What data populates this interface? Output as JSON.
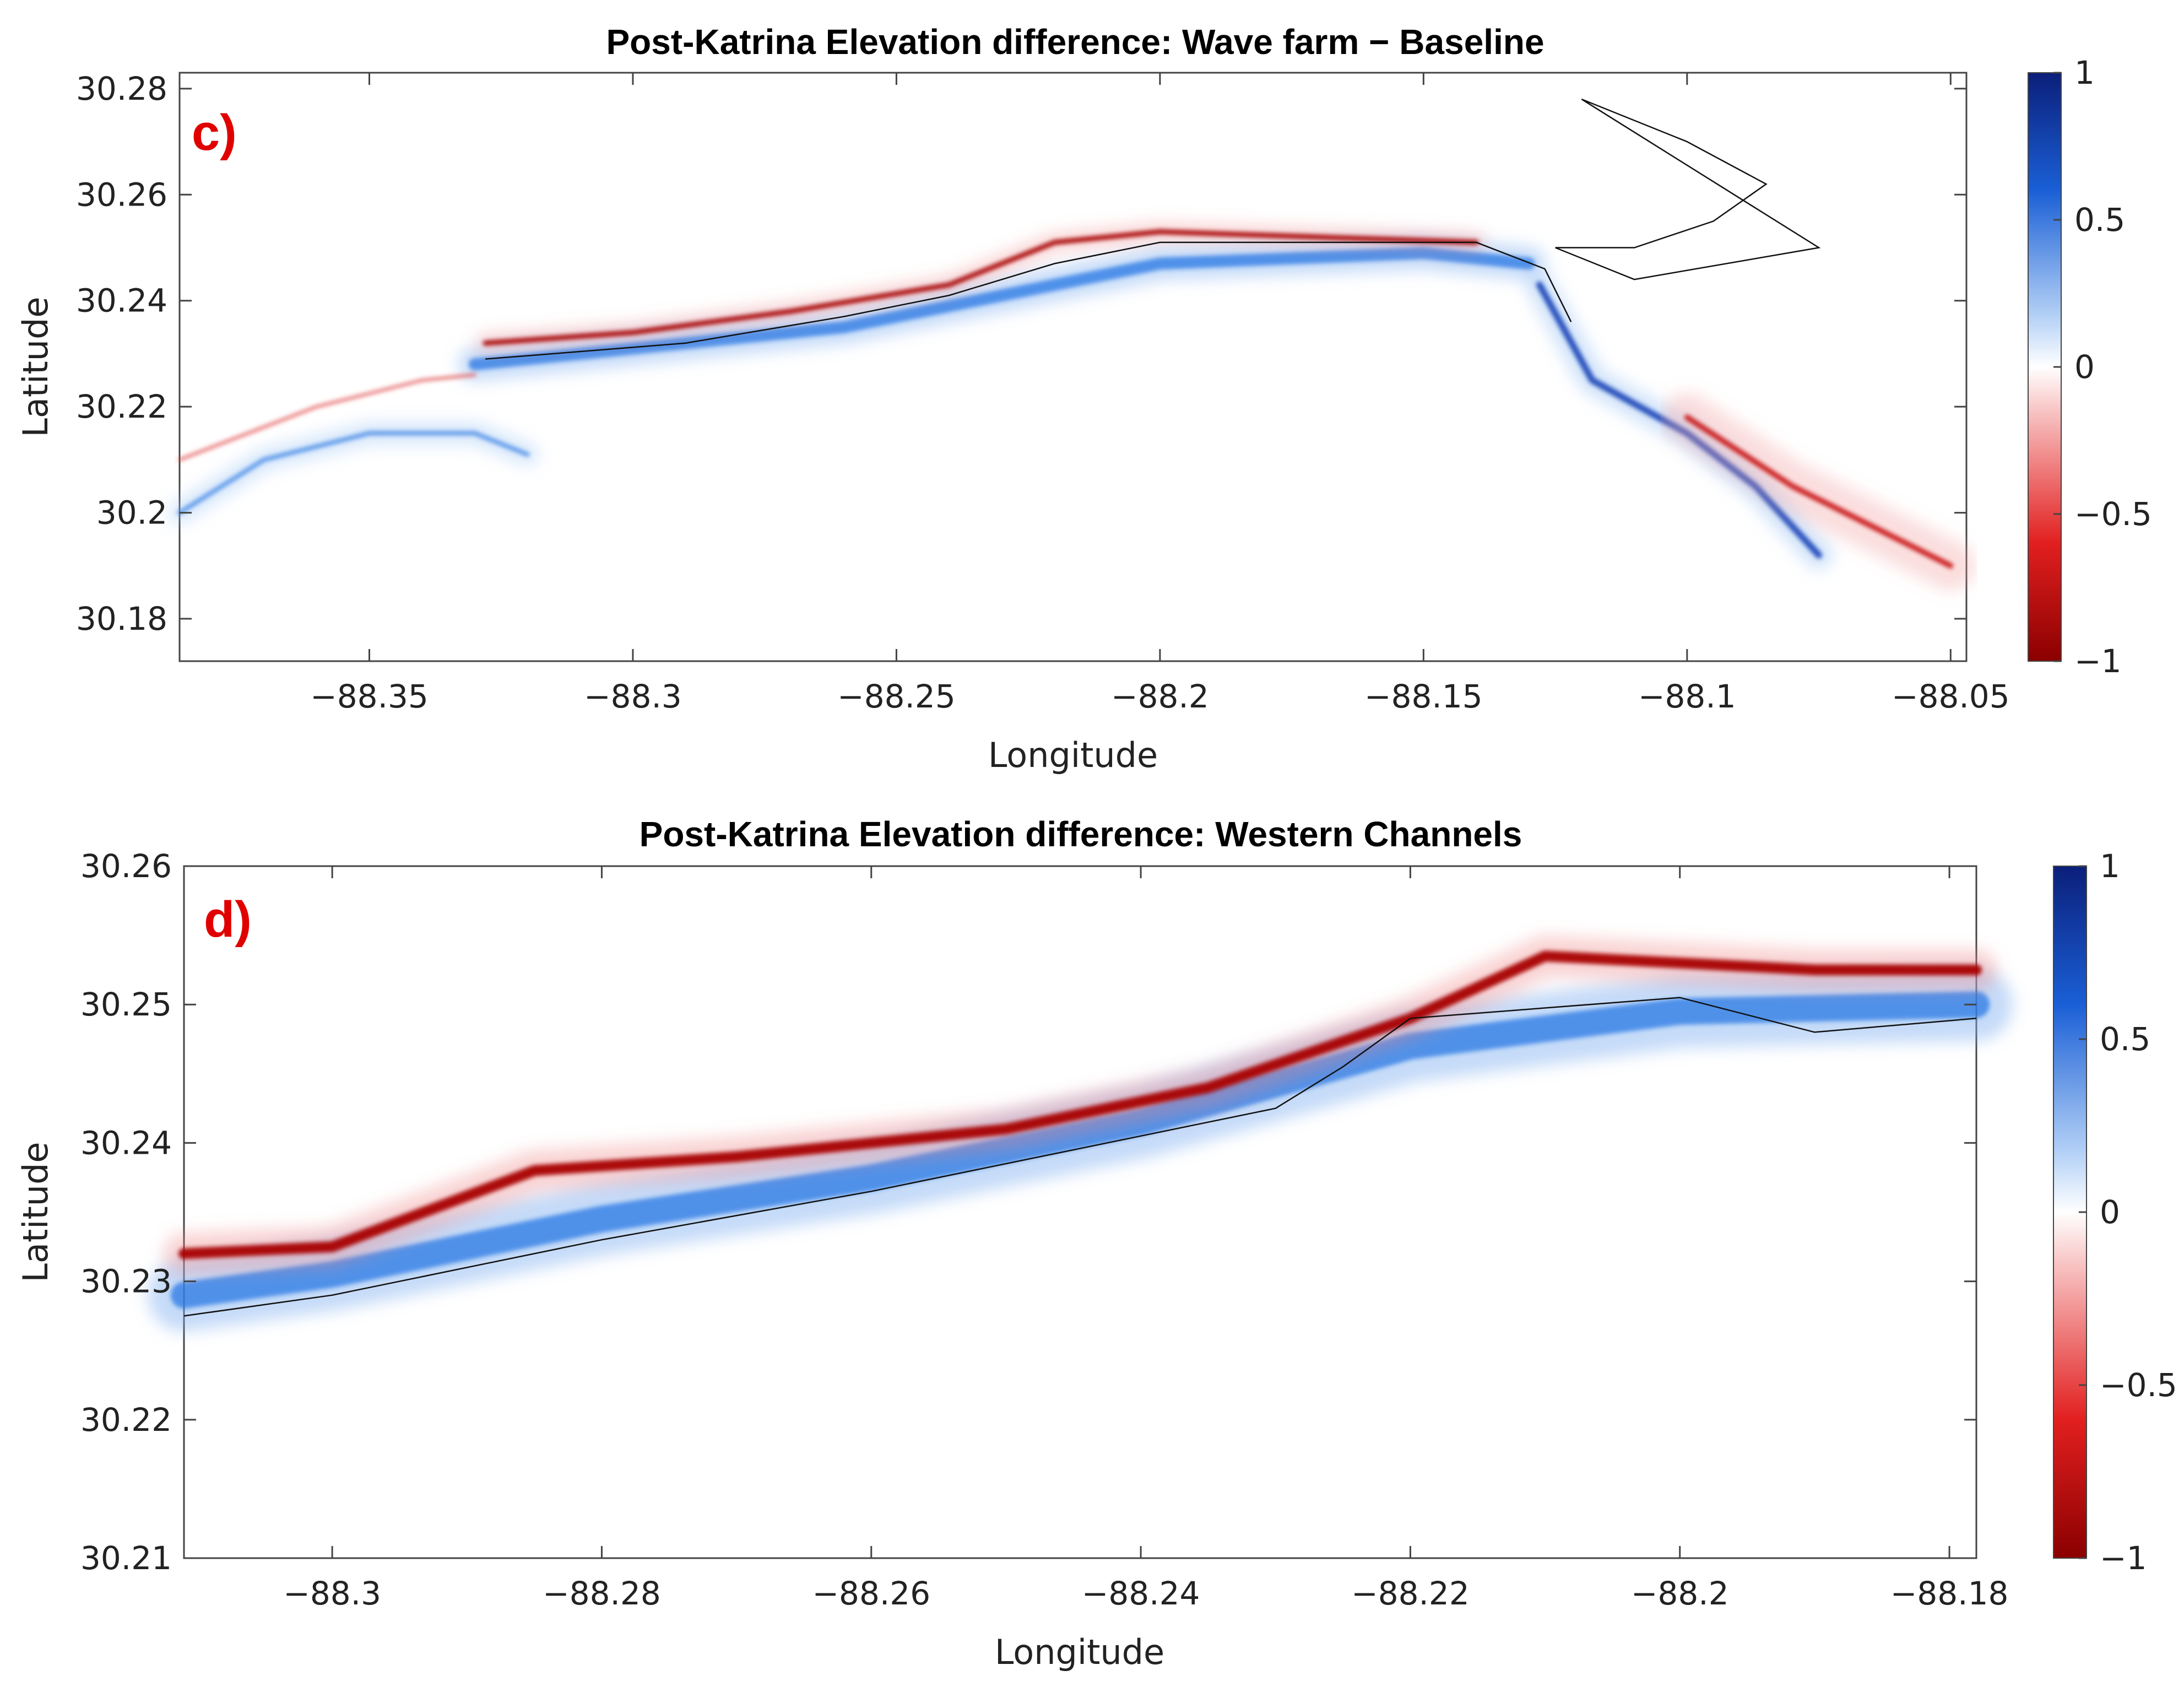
{
  "chart_data": [
    {
      "type": "heatmap",
      "panel_label": "c)",
      "title": "Post-Katrina Elevation difference: Wave farm − Baseline",
      "xlabel": "Longitude",
      "ylabel": "Latitude",
      "xlim": [
        -88.386,
        -88.047
      ],
      "ylim": [
        30.172,
        30.283
      ],
      "xticks": [
        -88.35,
        -88.3,
        -88.25,
        -88.2,
        -88.15,
        -88.1,
        -88.05
      ],
      "xtick_labels": [
        "−88.35",
        "−88.3",
        "−88.25",
        "−88.2",
        "−88.15",
        "−88.1",
        "−88.05"
      ],
      "yticks": [
        30.28,
        30.26,
        30.24,
        30.22,
        30.2,
        30.18
      ],
      "ytick_labels": [
        "30.28",
        "30.26",
        "30.24",
        "30.22",
        "30.2",
        "30.18"
      ],
      "colorbar": {
        "range": [
          -1,
          1
        ],
        "ticks": [
          1,
          0.5,
          0,
          -0.5,
          -1
        ],
        "tick_labels": [
          "1",
          "0.5",
          "0",
          "−0.5",
          "−1"
        ],
        "low_color": "#8b0000",
        "high_color": "#0b1f7a"
      },
      "island_polyline": [
        [
          -88.328,
          30.229
        ],
        [
          -88.315,
          30.23
        ],
        [
          -88.29,
          30.232
        ],
        [
          -88.26,
          30.237
        ],
        [
          -88.24,
          30.241
        ],
        [
          -88.22,
          30.247
        ],
        [
          -88.2,
          30.251
        ],
        [
          -88.17,
          30.251
        ],
        [
          -88.14,
          30.251
        ],
        [
          -88.127,
          30.246
        ],
        [
          -88.122,
          30.236
        ]
      ],
      "positive_band": [
        [
          -88.33,
          30.228
        ],
        [
          -88.3,
          30.231
        ],
        [
          -88.26,
          30.235
        ],
        [
          -88.22,
          30.243
        ],
        [
          -88.2,
          30.247
        ],
        [
          -88.15,
          30.249
        ],
        [
          -88.13,
          30.247
        ]
      ],
      "negative_band": [
        [
          -88.328,
          30.232
        ],
        [
          -88.3,
          30.234
        ],
        [
          -88.27,
          30.238
        ],
        [
          -88.24,
          30.243
        ],
        [
          -88.22,
          30.251
        ],
        [
          -88.2,
          30.253
        ],
        [
          -88.17,
          30.252
        ],
        [
          -88.14,
          30.251
        ]
      ],
      "se_positive_band": [
        [
          -88.128,
          30.243
        ],
        [
          -88.118,
          30.225
        ],
        [
          -88.1,
          30.215
        ],
        [
          -88.087,
          30.205
        ],
        [
          -88.075,
          30.192
        ]
      ],
      "se_negative_band": [
        [
          -88.1,
          30.218
        ],
        [
          -88.08,
          30.205
        ],
        [
          -88.06,
          30.195
        ],
        [
          -88.05,
          30.19
        ]
      ],
      "sw_positive_band": [
        [
          -88.386,
          30.2
        ],
        [
          -88.37,
          30.21
        ],
        [
          -88.35,
          30.215
        ],
        [
          -88.33,
          30.215
        ],
        [
          -88.32,
          30.211
        ]
      ],
      "sw_negative_band": [
        [
          -88.386,
          30.21
        ],
        [
          -88.36,
          30.22
        ],
        [
          -88.34,
          30.225
        ],
        [
          -88.33,
          30.226
        ]
      ],
      "east_coast_polyline": [
        [
          -88.125,
          30.25
        ],
        [
          -88.11,
          30.25
        ],
        [
          -88.095,
          30.255
        ],
        [
          -88.085,
          30.262
        ],
        [
          -88.1,
          30.27
        ],
        [
          -88.12,
          30.278
        ],
        [
          -88.075,
          30.25
        ],
        [
          -88.11,
          30.244
        ],
        [
          -88.125,
          30.25
        ]
      ]
    },
    {
      "type": "heatmap",
      "panel_label": "d)",
      "title": "Post-Katrina Elevation difference: Western Channels",
      "xlabel": "Longitude",
      "ylabel": "Latitude",
      "xlim": [
        -88.311,
        -88.178
      ],
      "ylim": [
        30.21,
        30.26
      ],
      "xticks": [
        -88.3,
        -88.28,
        -88.26,
        -88.24,
        -88.22,
        -88.2,
        -88.18
      ],
      "xtick_labels": [
        "−88.3",
        "−88.28",
        "−88.26",
        "−88.24",
        "−88.22",
        "−88.2",
        "−88.18"
      ],
      "yticks": [
        30.26,
        30.25,
        30.24,
        30.23,
        30.22,
        30.21
      ],
      "ytick_labels": [
        "30.26",
        "30.25",
        "30.24",
        "30.23",
        "30.22",
        "30.21"
      ],
      "colorbar": {
        "range": [
          -1,
          1
        ],
        "ticks": [
          1,
          0.5,
          0,
          -0.5,
          -1
        ],
        "tick_labels": [
          "1",
          "0.5",
          "0",
          "−0.5",
          "−1"
        ],
        "low_color": "#8b0000",
        "high_color": "#0b1f7a"
      },
      "island_polyline": [
        [
          -88.311,
          30.2275
        ],
        [
          -88.3,
          30.229
        ],
        [
          -88.28,
          30.233
        ],
        [
          -88.26,
          30.2365
        ],
        [
          -88.24,
          30.2405
        ],
        [
          -88.23,
          30.2425
        ],
        [
          -88.225,
          30.2455
        ],
        [
          -88.22,
          30.249
        ],
        [
          -88.2,
          30.2505
        ],
        [
          -88.19,
          30.248
        ],
        [
          -88.178,
          30.249
        ]
      ],
      "positive_band": [
        [
          -88.311,
          30.229
        ],
        [
          -88.3,
          30.2305
        ],
        [
          -88.28,
          30.2345
        ],
        [
          -88.26,
          30.2375
        ],
        [
          -88.24,
          30.2415
        ],
        [
          -88.22,
          30.247
        ],
        [
          -88.2,
          30.2495
        ],
        [
          -88.178,
          30.25
        ]
      ],
      "negative_band": [
        [
          -88.311,
          30.232
        ],
        [
          -88.3,
          30.2325
        ],
        [
          -88.285,
          30.238
        ],
        [
          -88.27,
          30.239
        ],
        [
          -88.25,
          30.241
        ],
        [
          -88.235,
          30.244
        ],
        [
          -88.22,
          30.249
        ],
        [
          -88.21,
          30.2535
        ],
        [
          -88.2,
          30.253
        ],
        [
          -88.19,
          30.2525
        ],
        [
          -88.178,
          30.2525
        ]
      ]
    }
  ]
}
